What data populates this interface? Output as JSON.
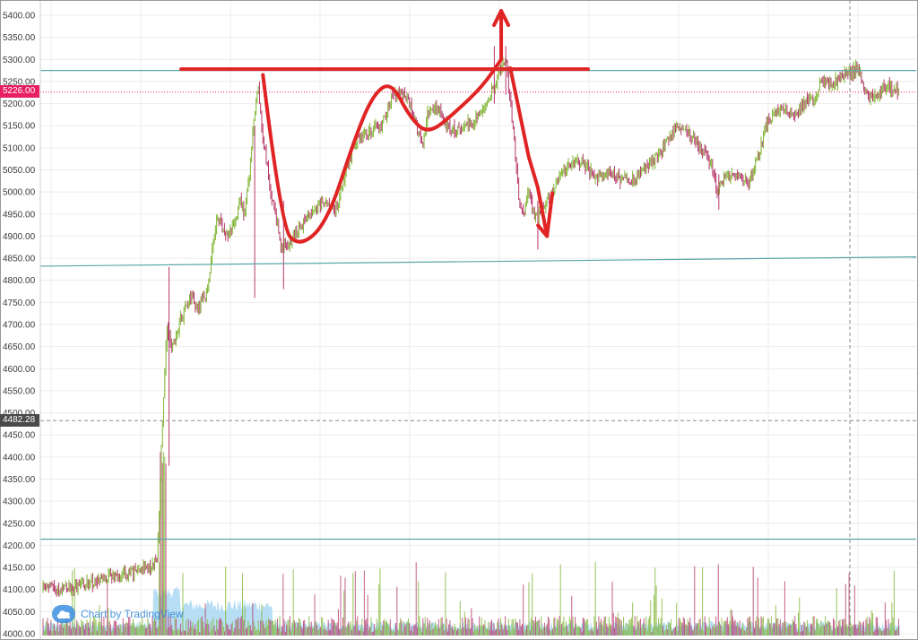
{
  "chart_data": {
    "type": "candlestick",
    "y_axis": {
      "range": [
        4000,
        5420
      ],
      "tick_labels": [
        "5400.00",
        "5350.00",
        "5300.00",
        "5250.00",
        "5200.00",
        "5150.00",
        "5100.00",
        "5050.00",
        "5000.00",
        "4950.00",
        "4900.00",
        "4850.00",
        "4800.00",
        "4750.00",
        "4700.00",
        "4650.00",
        "4600.00",
        "4550.00",
        "4500.00",
        "4450.00",
        "4400.00",
        "4350.00",
        "4300.00",
        "4250.00",
        "4200.00",
        "4150.00",
        "4100.00",
        "4050.00",
        "4000.00"
      ],
      "side": "left"
    },
    "grid": true,
    "last_price_label": "5226.00",
    "crosshair_price_label": "4482.28",
    "price_path": [
      [
        0,
        4105
      ],
      [
        4,
        4100
      ],
      [
        8,
        4110
      ],
      [
        12,
        4120
      ],
      [
        16,
        4130
      ],
      [
        20,
        4140
      ],
      [
        24,
        4150
      ],
      [
        25,
        4180
      ],
      [
        26,
        4460
      ],
      [
        27,
        4700
      ],
      [
        28,
        4640
      ],
      [
        30,
        4710
      ],
      [
        32,
        4760
      ],
      [
        34,
        4740
      ],
      [
        36,
        4780
      ],
      [
        37,
        4870
      ],
      [
        38,
        4950
      ],
      [
        40,
        4900
      ],
      [
        42,
        4930
      ],
      [
        43,
        4990
      ],
      [
        44,
        4950
      ],
      [
        45,
        5030
      ],
      [
        46,
        5160
      ],
      [
        47,
        5230
      ],
      [
        48,
        5120
      ],
      [
        49,
        5050
      ],
      [
        50,
        4980
      ],
      [
        51,
        4930
      ],
      [
        52,
        4870
      ],
      [
        54,
        4890
      ],
      [
        56,
        4920
      ],
      [
        58,
        4950
      ],
      [
        60,
        4970
      ],
      [
        62,
        4975
      ],
      [
        64,
        4960
      ],
      [
        66,
        5040
      ],
      [
        68,
        5110
      ],
      [
        70,
        5130
      ],
      [
        72,
        5140
      ],
      [
        74,
        5150
      ],
      [
        76,
        5210
      ],
      [
        78,
        5230
      ],
      [
        80,
        5200
      ],
      [
        82,
        5130
      ],
      [
        83,
        5110
      ],
      [
        84,
        5180
      ],
      [
        86,
        5190
      ],
      [
        88,
        5150
      ],
      [
        90,
        5140
      ],
      [
        92,
        5150
      ],
      [
        94,
        5160
      ],
      [
        96,
        5190
      ],
      [
        98,
        5230
      ],
      [
        100,
        5280
      ],
      [
        101,
        5300
      ],
      [
        102,
        5200
      ],
      [
        103,
        5100
      ],
      [
        104,
        4970
      ],
      [
        105,
        4950
      ],
      [
        106,
        5010
      ],
      [
        107,
        4960
      ],
      [
        108,
        4940
      ],
      [
        110,
        4980
      ],
      [
        112,
        5020
      ],
      [
        114,
        5050
      ],
      [
        116,
        5070
      ],
      [
        118,
        5060
      ],
      [
        120,
        5040
      ],
      [
        122,
        5030
      ],
      [
        124,
        5045
      ],
      [
        126,
        5030
      ],
      [
        128,
        5020
      ],
      [
        130,
        5040
      ],
      [
        132,
        5060
      ],
      [
        134,
        5080
      ],
      [
        136,
        5110
      ],
      [
        138,
        5150
      ],
      [
        140,
        5140
      ],
      [
        142,
        5120
      ],
      [
        144,
        5090
      ],
      [
        146,
        5060
      ],
      [
        147,
        5000
      ],
      [
        148,
        5020
      ],
      [
        150,
        5040
      ],
      [
        152,
        5030
      ],
      [
        154,
        5020
      ],
      [
        156,
        5080
      ],
      [
        157,
        5110
      ],
      [
        158,
        5160
      ],
      [
        160,
        5180
      ],
      [
        162,
        5190
      ],
      [
        164,
        5170
      ],
      [
        166,
        5200
      ],
      [
        168,
        5210
      ],
      [
        170,
        5250
      ],
      [
        172,
        5240
      ],
      [
        174,
        5260
      ],
      [
        176,
        5270
      ],
      [
        178,
        5280
      ],
      [
        180,
        5210
      ],
      [
        182,
        5220
      ],
      [
        184,
        5240
      ],
      [
        186,
        5230
      ],
      [
        187,
        5226
      ]
    ],
    "horizontal_lines": [
      {
        "name": "resistance-line-upper",
        "price": 5275,
        "color": "#5aa5a8"
      },
      {
        "name": "support-line-lower",
        "price_start": 4832,
        "price_end": 4853,
        "color": "#5aa5a8"
      },
      {
        "name": "support-line-base",
        "price": 4214,
        "color": "#5aa5a8"
      }
    ],
    "annotations": {
      "neckline": {
        "price": 5278,
        "color": "#e02424"
      },
      "cup_handle_curve": [
        [
          48,
          5265
        ],
        [
          52,
          4920
        ],
        [
          56,
          4875
        ],
        [
          62,
          4930
        ],
        [
          68,
          5120
        ],
        [
          72,
          5220
        ],
        [
          76,
          5250
        ],
        [
          80,
          5170
        ],
        [
          84,
          5130
        ],
        [
          90,
          5180
        ],
        [
          96,
          5240
        ],
        [
          100,
          5300
        ]
      ],
      "breakout_arrow": {
        "x": 100,
        "from": 5300,
        "to": 5410
      },
      "drop_arrow": [
        [
          102,
          5280
        ],
        [
          104,
          5180
        ],
        [
          106,
          5080
        ],
        [
          108,
          5010
        ],
        [
          110,
          4900
        ]
      ]
    },
    "colors": {
      "up_candle": "#7fb432",
      "down_candle": "#b5386a",
      "volume_fill": "#9fd3f1",
      "drawing": "#e02424",
      "last_price_line": "#e91e63"
    }
  },
  "watermark": {
    "label": "Chart by TradingView"
  }
}
